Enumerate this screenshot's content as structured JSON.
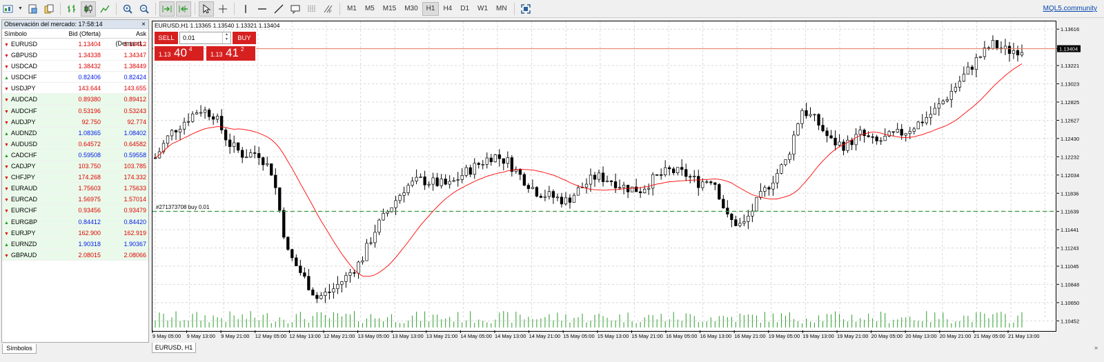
{
  "toolbar": {
    "timeframes": [
      "M1",
      "M5",
      "M15",
      "M30",
      "H1",
      "H4",
      "D1",
      "W1",
      "MN"
    ],
    "active_timeframe": "H1",
    "community_link": "MQL5.community"
  },
  "market_watch": {
    "title": "Observación del mercado: 17:58:14",
    "close": "×",
    "headers": {
      "symbol": "Símbolo",
      "bid": "Bid (Oferta)",
      "ask": "Ask (Demand..."
    },
    "rows": [
      {
        "symbol": "EURUSD",
        "bid": "1.13404",
        "ask": "1.13412",
        "dir": "down",
        "bid_color": "red",
        "ask_color": "red",
        "shade": false
      },
      {
        "symbol": "GBPUSD",
        "bid": "1.34338",
        "ask": "1.34347",
        "dir": "down",
        "bid_color": "red",
        "ask_color": "red",
        "shade": false
      },
      {
        "symbol": "USDCAD",
        "bid": "1.38432",
        "ask": "1.38449",
        "dir": "down",
        "bid_color": "red",
        "ask_color": "red",
        "shade": false
      },
      {
        "symbol": "USDCHF",
        "bid": "0.82406",
        "ask": "0.82424",
        "dir": "up",
        "bid_color": "blue",
        "ask_color": "blue",
        "shade": false
      },
      {
        "symbol": "USDJPY",
        "bid": "143.644",
        "ask": "143.655",
        "dir": "down",
        "bid_color": "red",
        "ask_color": "red",
        "shade": false
      },
      {
        "symbol": "AUDCAD",
        "bid": "0.89380",
        "ask": "0.89412",
        "dir": "down",
        "bid_color": "red",
        "ask_color": "red",
        "shade": true
      },
      {
        "symbol": "AUDCHF",
        "bid": "0.53196",
        "ask": "0.53243",
        "dir": "down",
        "bid_color": "red",
        "ask_color": "red",
        "shade": true
      },
      {
        "symbol": "AUDJPY",
        "bid": "92.750",
        "ask": "92.774",
        "dir": "down",
        "bid_color": "red",
        "ask_color": "red",
        "shade": true
      },
      {
        "symbol": "AUDNZD",
        "bid": "1.08365",
        "ask": "1.08402",
        "dir": "up",
        "bid_color": "blue",
        "ask_color": "blue",
        "shade": true
      },
      {
        "symbol": "AUDUSD",
        "bid": "0.64572",
        "ask": "0.64582",
        "dir": "down",
        "bid_color": "red",
        "ask_color": "red",
        "shade": true
      },
      {
        "symbol": "CADCHF",
        "bid": "0.59508",
        "ask": "0.59558",
        "dir": "up",
        "bid_color": "blue",
        "ask_color": "blue",
        "shade": true
      },
      {
        "symbol": "CADJPY",
        "bid": "103.750",
        "ask": "103.785",
        "dir": "down",
        "bid_color": "red",
        "ask_color": "red",
        "shade": true
      },
      {
        "symbol": "CHFJPY",
        "bid": "174.268",
        "ask": "174.332",
        "dir": "down",
        "bid_color": "red",
        "ask_color": "red",
        "shade": true
      },
      {
        "symbol": "EURAUD",
        "bid": "1.75603",
        "ask": "1.75633",
        "dir": "down",
        "bid_color": "red",
        "ask_color": "red",
        "shade": true
      },
      {
        "symbol": "EURCAD",
        "bid": "1.56975",
        "ask": "1.57014",
        "dir": "down",
        "bid_color": "red",
        "ask_color": "red",
        "shade": true
      },
      {
        "symbol": "EURCHF",
        "bid": "0.93456",
        "ask": "0.93479",
        "dir": "down",
        "bid_color": "red",
        "ask_color": "red",
        "shade": true
      },
      {
        "symbol": "EURGBP",
        "bid": "0.84412",
        "ask": "0.84420",
        "dir": "up",
        "bid_color": "blue",
        "ask_color": "blue",
        "shade": true
      },
      {
        "symbol": "EURJPY",
        "bid": "162.900",
        "ask": "162.919",
        "dir": "down",
        "bid_color": "red",
        "ask_color": "red",
        "shade": true
      },
      {
        "symbol": "EURNZD",
        "bid": "1.90318",
        "ask": "1.90367",
        "dir": "up",
        "bid_color": "blue",
        "ask_color": "blue",
        "shade": true
      },
      {
        "symbol": "GBPAUD",
        "bid": "2.08015",
        "ask": "2.08066",
        "dir": "down",
        "bid_color": "red",
        "ask_color": "red",
        "shade": true
      }
    ],
    "tab": "Símbolos"
  },
  "chart": {
    "info": "EURUSD,H1  1.13365 1.13540 1.13321 1.13404",
    "tab": "EURUSD, H1",
    "scroll_arrow": "»",
    "trade": {
      "sell": "SELL",
      "buy": "BUY",
      "lot": "0.01",
      "sell_prefix": "1.13",
      "sell_big": "40",
      "sell_sup": "4",
      "buy_prefix": "1.13",
      "buy_big": "41",
      "buy_sup": "2"
    },
    "order_label": "#271373708 buy 0.01",
    "price_tag": "1.13404",
    "colors": {
      "sell_buy": "#d62020",
      "ma": "#ff0000",
      "order_line": "#3a9a3a",
      "bid_line": "#e87a5a"
    }
  },
  "chart_data": {
    "type": "candlestick",
    "symbol": "EURUSD",
    "timeframe": "H1",
    "y_ticks": [
      "1.13616",
      "1.13404",
      "1.13221",
      "1.13023",
      "1.12825",
      "1.12627",
      "1.12430",
      "1.12232",
      "1.12034",
      "1.11836",
      "1.11639",
      "1.11441",
      "1.11243",
      "1.11045",
      "1.10848",
      "1.10650",
      "1.10452"
    ],
    "ylim": [
      1.1035,
      1.137
    ],
    "x_ticks": [
      "9 May 05:00",
      "9 May 13:00",
      "9 May 21:00",
      "12 May 05:00",
      "12 May 13:00",
      "12 May 21:00",
      "13 May 05:00",
      "13 May 13:00",
      "13 May 21:00",
      "14 May 05:00",
      "14 May 13:00",
      "14 May 21:00",
      "15 May 05:00",
      "15 May 13:00",
      "15 May 21:00",
      "16 May 05:00",
      "16 May 13:00",
      "16 May 21:00",
      "19 May 05:00",
      "19 May 13:00",
      "19 May 21:00",
      "20 May 05:00",
      "20 May 13:00",
      "20 May 21:00",
      "21 May 05:00",
      "21 May 13:00"
    ],
    "bid": 1.13404,
    "order_price": 1.1164,
    "close_path": [
      1.1222,
      1.1248,
      1.1262,
      1.1275,
      1.1269,
      1.1238,
      1.1225,
      1.1228,
      1.1205,
      1.112,
      1.1095,
      1.107,
      1.1078,
      1.1093,
      1.111,
      1.1145,
      1.1168,
      1.119,
      1.1198,
      1.1195,
      1.1192,
      1.1205,
      1.1215,
      1.1225,
      1.1218,
      1.12,
      1.1185,
      1.118,
      1.1175,
      1.119,
      1.1202,
      1.1198,
      1.119,
      1.1187,
      1.12,
      1.1208,
      1.1205,
      1.1195,
      1.12,
      1.1155,
      1.1148,
      1.1175,
      1.1198,
      1.122,
      1.1275,
      1.1262,
      1.124,
      1.1235,
      1.1248,
      1.1238,
      1.1245,
      1.125,
      1.126,
      1.1272,
      1.129,
      1.131,
      1.133,
      1.1345,
      1.1338,
      1.134
    ],
    "ma_period": 20
  }
}
